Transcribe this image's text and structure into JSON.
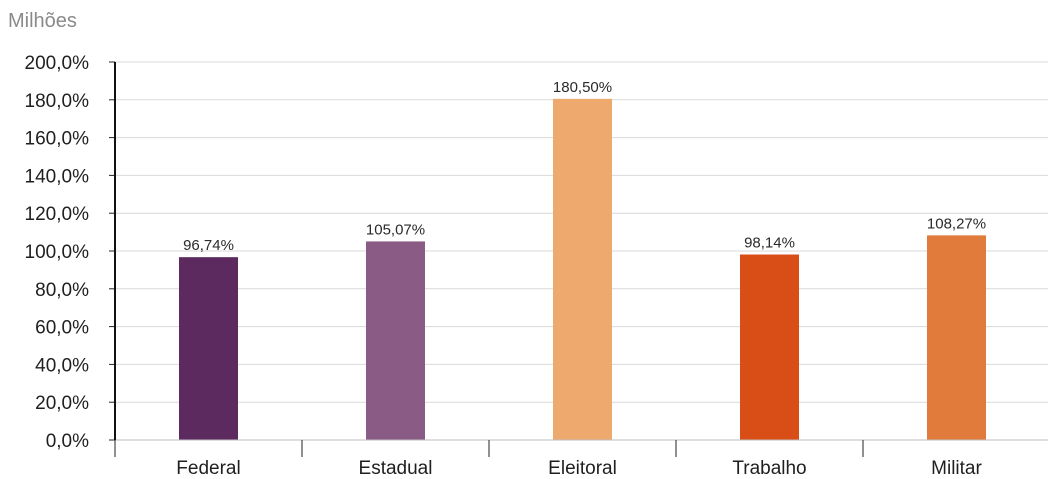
{
  "chart_data": {
    "type": "bar",
    "unit_label": "Milhões",
    "categories": [
      "Federal",
      "Estadual",
      "Eleitoral",
      "Trabalho",
      "Militar"
    ],
    "values": [
      96.74,
      105.07,
      180.5,
      98.14,
      108.27
    ],
    "data_labels": [
      "96,74%",
      "105,07%",
      "180,50%",
      "98,14%",
      "108,27%"
    ],
    "colors": [
      "#5c2a5f",
      "#8a5b84",
      "#eea96f",
      "#d94d17",
      "#e07b3c"
    ],
    "ylim": [
      0,
      200
    ],
    "yticks": [
      0,
      20,
      40,
      60,
      80,
      100,
      120,
      140,
      160,
      180,
      200
    ],
    "ytick_labels": [
      "0,0%",
      "20,0%",
      "40,0%",
      "60,0%",
      "80,0%",
      "100,0%",
      "120,0%",
      "140,0%",
      "160,0%",
      "180,0%",
      "200,0%"
    ],
    "grid": true,
    "xlabel": "",
    "ylabel": ""
  }
}
